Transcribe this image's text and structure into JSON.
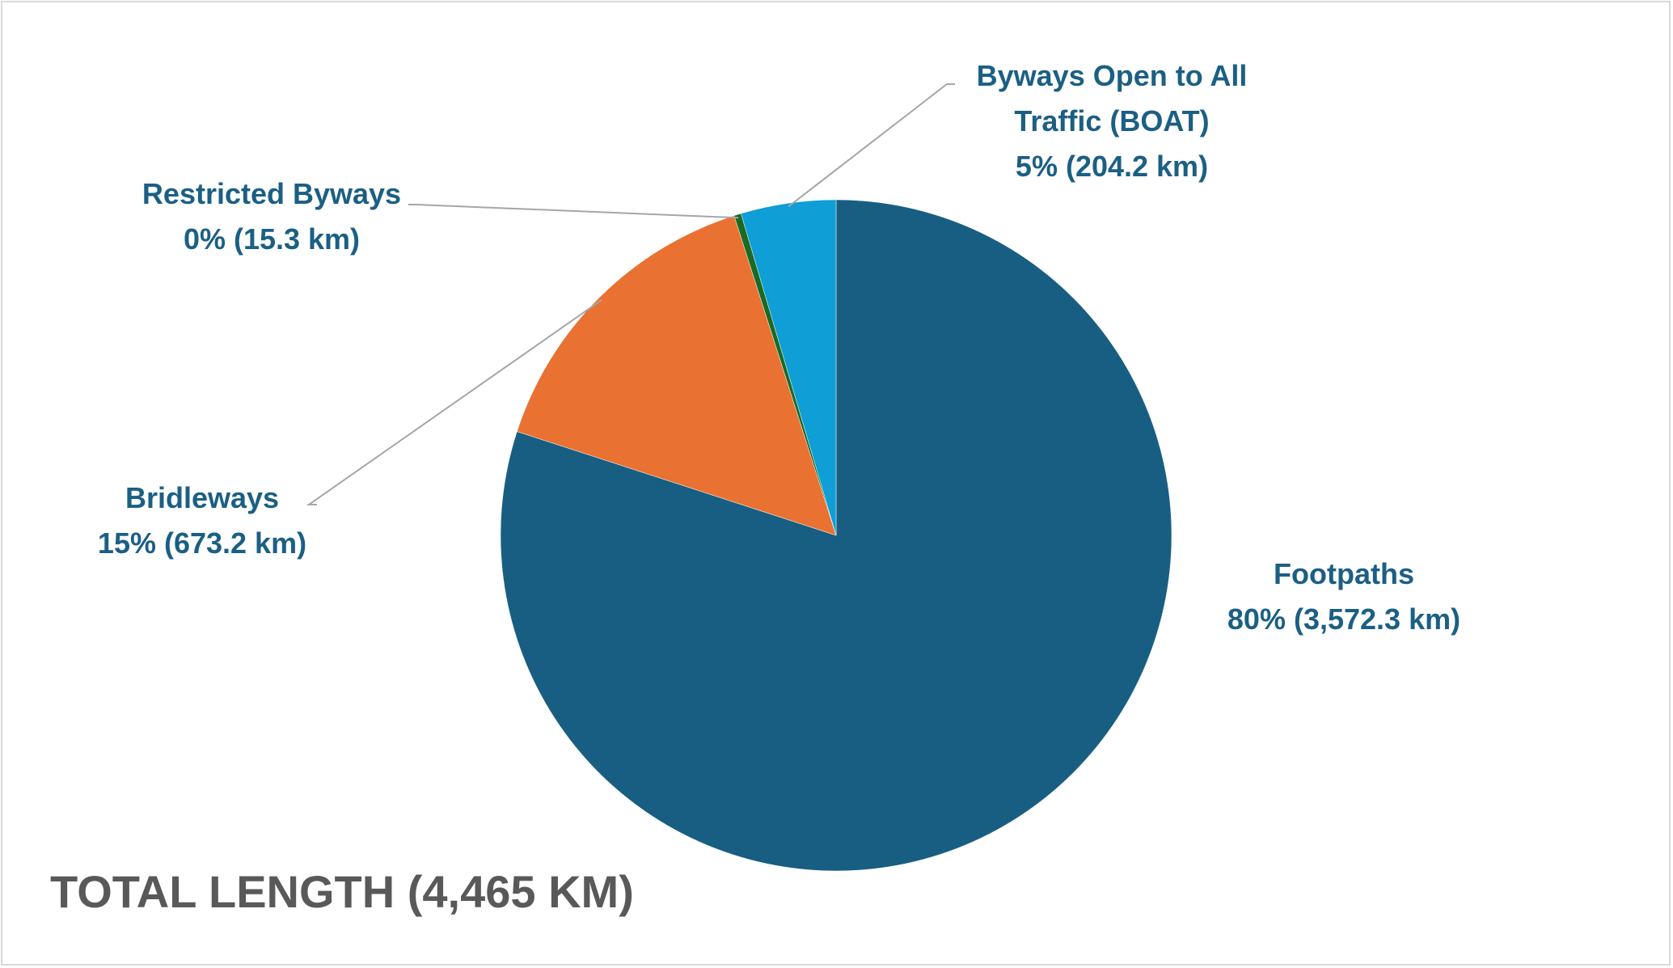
{
  "chart_data": {
    "type": "pie",
    "title": "TOTAL LENGTH (4,465 KM)",
    "start_angle_deg": 0,
    "direction": "clockwise",
    "slices": [
      {
        "name": "Footpaths",
        "value": 3572.3,
        "percent_label": "80% (3,572.3 km)",
        "color": "#185e82"
      },
      {
        "name": "Bridleways",
        "value": 673.2,
        "percent_label": "15% (673.2 km)",
        "color": "#e97132"
      },
      {
        "name": "Restricted Byways",
        "value": 15.3,
        "percent_label": "0% (15.3 km)",
        "color": "#196b24"
      },
      {
        "name": "Byways Open to All Traffic (BOAT)",
        "name_lines": [
          "Byways Open to All",
          "Traffic (BOAT)"
        ],
        "value": 204.2,
        "percent_label": "5% (204.2 km)",
        "color": "#0f9ed5"
      }
    ],
    "label_color": "#1b5f84",
    "leader_line_color": "#a6a6a6",
    "title_color": "#595959"
  }
}
